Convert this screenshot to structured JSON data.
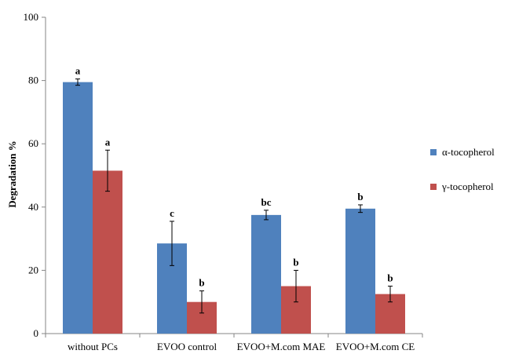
{
  "chart_data": {
    "type": "bar",
    "title": "",
    "xlabel": "",
    "ylabel": "Degradation %",
    "ylim": [
      0,
      100
    ],
    "yticks": [
      0,
      20,
      40,
      60,
      80,
      100
    ],
    "grid": false,
    "legend_position": "right",
    "categories": [
      "without PCs",
      "EVOO control",
      "EVOO+M.com MAE",
      "EVOO+M.com CE"
    ],
    "series": [
      {
        "name": "α-tocopherol",
        "color": "#4F81BD",
        "values": [
          79.5,
          28.5,
          37.5,
          39.5
        ],
        "errors": [
          1.0,
          7.0,
          1.5,
          1.2
        ],
        "labels": [
          "a",
          "c",
          "bc",
          "b"
        ]
      },
      {
        "name": "γ-tocopherol",
        "color": "#C0504D",
        "values": [
          51.5,
          10.0,
          15.0,
          12.5
        ],
        "errors": [
          6.5,
          3.5,
          5.0,
          2.5
        ],
        "labels": [
          "a",
          "b",
          "b",
          "b"
        ]
      }
    ]
  }
}
